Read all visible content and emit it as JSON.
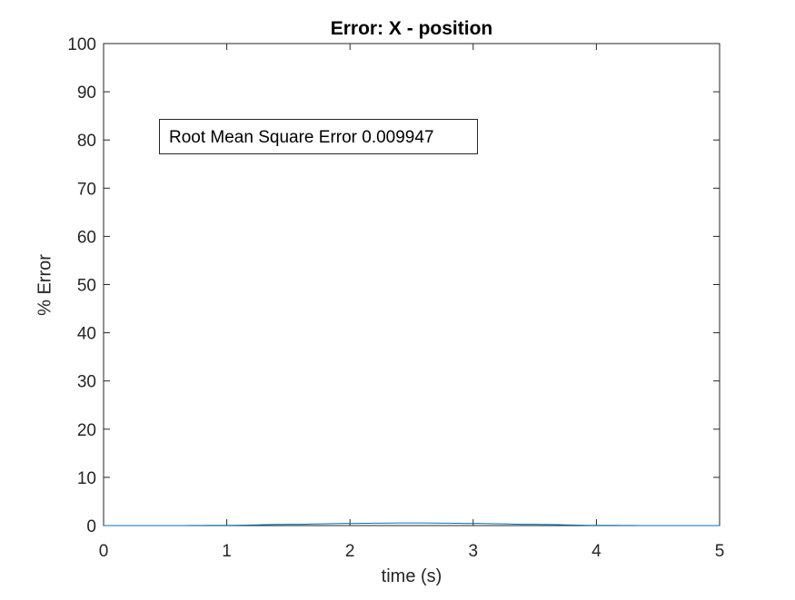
{
  "chart_data": {
    "type": "line",
    "title": "Error: X - position",
    "xlabel": "time (s)",
    "ylabel": "% Error",
    "xlim": [
      0,
      5
    ],
    "ylim": [
      0,
      100
    ],
    "xticks": [
      0,
      1,
      2,
      3,
      4,
      5
    ],
    "yticks": [
      0,
      10,
      20,
      30,
      40,
      50,
      60,
      70,
      80,
      90,
      100
    ],
    "grid": false,
    "annotation": "Root Mean Square Error 0.009947",
    "series": [
      {
        "name": "error",
        "color": "#0072BD",
        "x": [
          0,
          0.5,
          1,
          1.5,
          2,
          2.5,
          3,
          3.5,
          4,
          4.5,
          5
        ],
        "y": [
          0.0,
          0.0,
          0.05,
          0.25,
          0.45,
          0.55,
          0.45,
          0.25,
          0.05,
          0.0,
          0.0
        ]
      }
    ]
  }
}
